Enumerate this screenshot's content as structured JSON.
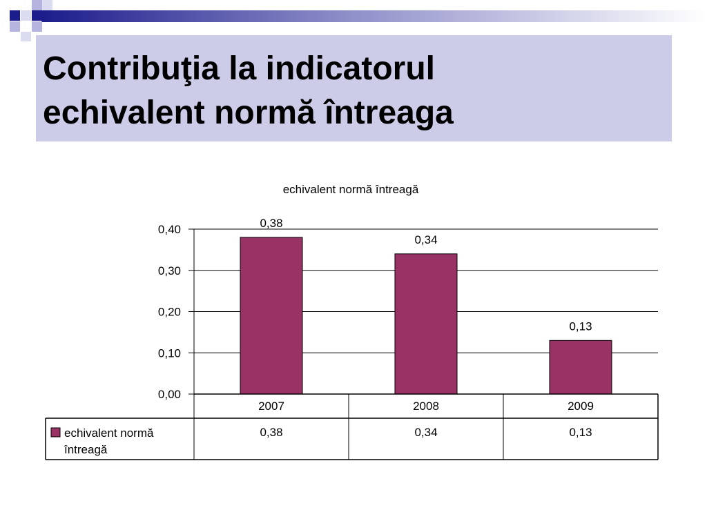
{
  "slide": {
    "title_line1": "Contribuţia la indicatorul",
    "title_line2": "echivalent normă întreaga"
  },
  "colors": {
    "bar": "#993366",
    "title_background": "#cccce8",
    "decor_dark": "#1c1c8c",
    "decor_light": "#b4b4de"
  },
  "chart_data": {
    "type": "bar",
    "title": "echivalent normă întreagă",
    "categories": [
      "2007",
      "2008",
      "2009"
    ],
    "series": [
      {
        "name": "echivalent normă întreagă",
        "values": [
          0.38,
          0.34,
          0.13
        ]
      }
    ],
    "value_labels": [
      "0,38",
      "0,34",
      "0,13"
    ],
    "ylim": [
      0,
      0.4
    ],
    "yticks": [
      0,
      0.1,
      0.2,
      0.3,
      0.4
    ],
    "ytick_labels": [
      "0,00",
      "0,10",
      "0,20",
      "0,30",
      "0,40"
    ],
    "grid": true,
    "data_table": {
      "legend_line1": "echivalent normă",
      "legend_line2": "întreagă",
      "values": [
        "0,38",
        "0,34",
        "0,13"
      ]
    }
  }
}
